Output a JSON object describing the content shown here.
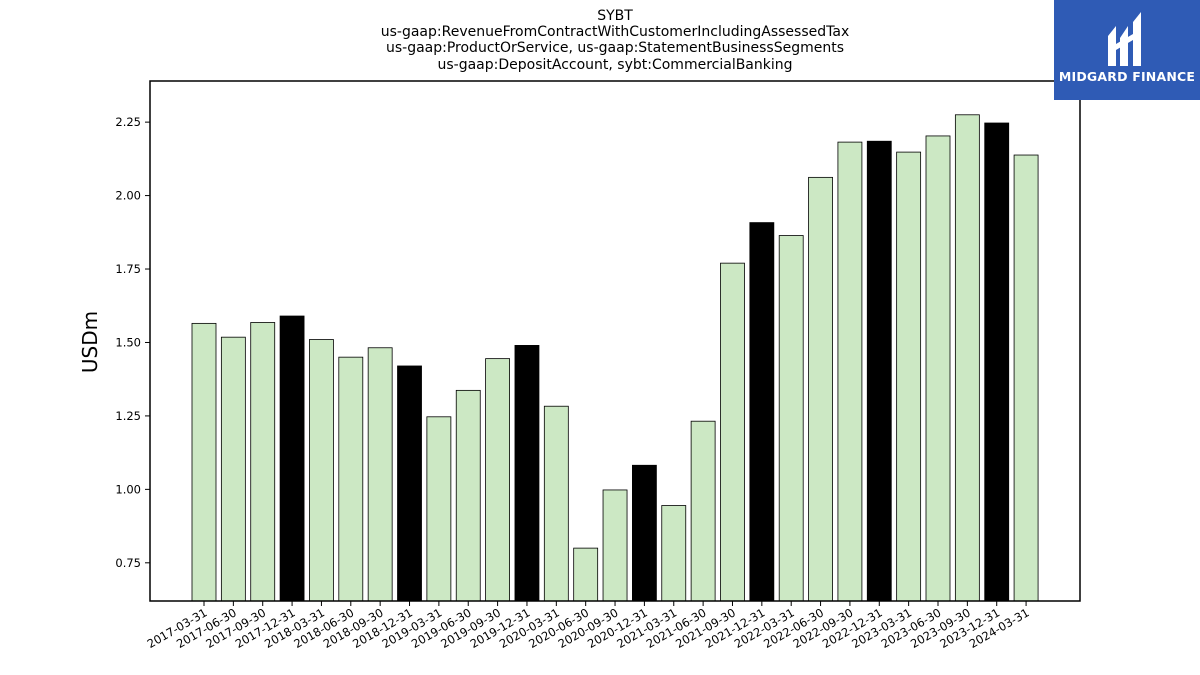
{
  "chart_data": {
    "type": "bar",
    "title": [
      "SYBT",
      "us-gaap:RevenueFromContractWithCustomerIncludingAssessedTax",
      "us-gaap:ProductOrService, us-gaap:StatementBusinessSegments",
      "us-gaap:DepositAccount, sybt:CommercialBanking"
    ],
    "ylabel": "USDm",
    "xlabel": "",
    "ylim": [
      0.62,
      2.39
    ],
    "yticks": [
      0.75,
      1.0,
      1.25,
      1.5,
      1.75,
      2.0,
      2.25
    ],
    "ytick_labels": [
      "0.75",
      "1.00",
      "1.25",
      "1.50",
      "1.75",
      "2.00",
      "2.25"
    ],
    "categories": [
      "2017-03-31",
      "2017-06-30",
      "2017-09-30",
      "2017-12-31",
      "2018-03-31",
      "2018-06-30",
      "2018-09-30",
      "2018-12-31",
      "2019-03-31",
      "2019-06-30",
      "2019-09-30",
      "2019-12-31",
      "2020-03-31",
      "2020-06-30",
      "2020-09-30",
      "2020-12-31",
      "2021-03-31",
      "2021-06-30",
      "2021-09-30",
      "2021-12-31",
      "2022-03-31",
      "2022-06-30",
      "2022-09-30",
      "2022-12-31",
      "2023-03-31",
      "2023-06-30",
      "2023-09-30",
      "2023-12-31",
      "2024-03-31"
    ],
    "values": [
      1.565,
      1.518,
      1.568,
      1.59,
      1.51,
      1.45,
      1.482,
      1.42,
      1.247,
      1.337,
      1.445,
      1.49,
      1.283,
      0.8,
      0.998,
      1.082,
      0.945,
      1.232,
      1.77,
      1.908,
      1.864,
      2.062,
      2.182,
      2.185,
      2.148,
      2.203,
      2.275,
      2.247,
      2.138
    ],
    "highlighted": [
      false,
      false,
      false,
      true,
      false,
      false,
      false,
      true,
      false,
      false,
      false,
      true,
      false,
      false,
      false,
      true,
      false,
      false,
      false,
      true,
      false,
      false,
      false,
      true,
      false,
      false,
      false,
      true,
      false
    ],
    "colors": {
      "bar": "#cce8c4",
      "highlight": "#000000",
      "edge": "#000000"
    },
    "grid": false,
    "legend": "none"
  },
  "logo": {
    "text": "MIDGARD FINANCE",
    "background": "#2f5bb5",
    "icon": "midgard-logo-icon"
  }
}
